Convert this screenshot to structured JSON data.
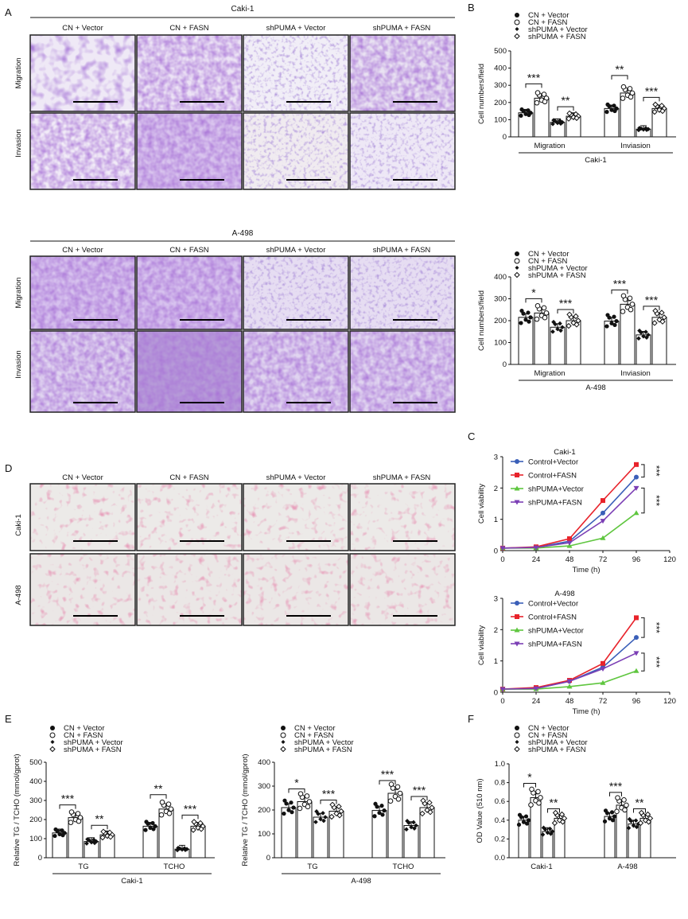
{
  "panel_letters": [
    "A",
    "B",
    "C",
    "D",
    "E",
    "F"
  ],
  "lines": {
    "caki": "Caki-1",
    "a498": "A-498"
  },
  "groups": [
    "CN + Vector",
    "CN + FASN",
    "shPUMA + Vector",
    "shPUMA + FASN"
  ],
  "rows": {
    "migration": "Migration",
    "invasion": "Invasion"
  },
  "viability_groups": [
    "Control+Vector",
    "Control+FASN",
    "shPUMA+Vector",
    "shPUMA+FASN"
  ],
  "colors": {
    "blue": "#3a5fb8",
    "red": "#e8232b",
    "green": "#5fc63f",
    "purple": "#7b3fb5"
  },
  "chart_data": [
    {
      "id": "B_caki",
      "type": "bar",
      "title": "Caki-1",
      "ylabel": "Cell numbers/field",
      "ylim": [
        0,
        500
      ],
      "yticks": [
        0,
        100,
        200,
        300,
        400,
        500
      ],
      "categories": [
        "Migration",
        "Inviasion"
      ],
      "series": [
        {
          "name": "CN + Vector",
          "values": [
            140,
            165
          ]
        },
        {
          "name": "CN + FASN",
          "values": [
            225,
            255
          ]
        },
        {
          "name": "shPUMA + Vector",
          "values": [
            85,
            45
          ]
        },
        {
          "name": "shPUMA + FASN",
          "values": [
            120,
            165
          ]
        }
      ],
      "annotations": [
        "***",
        "**",
        "**",
        "***"
      ]
    },
    {
      "id": "B_a498",
      "type": "bar",
      "title": "A-498",
      "ylabel": "Cell numbers/field",
      "ylim": [
        0,
        400
      ],
      "yticks": [
        0,
        100,
        200,
        300,
        400
      ],
      "categories": [
        "Migration",
        "Inviasion"
      ],
      "series": [
        {
          "name": "CN + Vector",
          "values": [
            215,
            198
          ]
        },
        {
          "name": "CN + FASN",
          "values": [
            235,
            275
          ]
        },
        {
          "name": "shPUMA + Vector",
          "values": [
            170,
            135
          ]
        },
        {
          "name": "shPUMA + FASN",
          "values": [
            200,
            215
          ]
        }
      ],
      "annotations": [
        "*",
        "***",
        "***",
        "***"
      ]
    },
    {
      "id": "C_caki",
      "type": "line",
      "title": "Caki-1",
      "xlabel": "Time (h)",
      "ylabel": "Cell viability",
      "x": [
        0,
        24,
        48,
        72,
        96
      ],
      "xticks": [
        0,
        24,
        48,
        72,
        96,
        120
      ],
      "xlim": [
        0,
        120
      ],
      "ylim": [
        0,
        3
      ],
      "yticks": [
        0,
        1,
        2,
        3
      ],
      "series": [
        {
          "name": "Control+Vector",
          "values": [
            0.08,
            0.1,
            0.3,
            1.2,
            2.35
          ]
        },
        {
          "name": "Control+FASN",
          "values": [
            0.08,
            0.12,
            0.38,
            1.6,
            2.75
          ]
        },
        {
          "name": "shPUMA+Vector",
          "values": [
            0.08,
            0.08,
            0.15,
            0.4,
            1.2
          ]
        },
        {
          "name": "shPUMA+FASN",
          "values": [
            0.08,
            0.1,
            0.25,
            0.95,
            2.0
          ]
        }
      ],
      "annotations": [
        "***",
        "***"
      ]
    },
    {
      "id": "C_a498",
      "type": "line",
      "title": "A-498",
      "xlabel": "Time (h)",
      "ylabel": "Cell viability",
      "x": [
        0,
        24,
        48,
        72,
        96
      ],
      "xticks": [
        0,
        24,
        48,
        72,
        96,
        120
      ],
      "xlim": [
        0,
        120
      ],
      "ylim": [
        0,
        3
      ],
      "yticks": [
        0,
        1,
        2,
        3
      ],
      "series": [
        {
          "name": "Control+Vector",
          "values": [
            0.1,
            0.12,
            0.35,
            0.8,
            1.75
          ]
        },
        {
          "name": "Control+FASN",
          "values": [
            0.1,
            0.15,
            0.38,
            0.92,
            2.38
          ]
        },
        {
          "name": "shPUMA+Vector",
          "values": [
            0.1,
            0.1,
            0.18,
            0.3,
            0.68
          ]
        },
        {
          "name": "shPUMA+FASN",
          "values": [
            0.1,
            0.12,
            0.35,
            0.75,
            1.25
          ]
        }
      ],
      "annotations": [
        "***",
        "***"
      ]
    },
    {
      "id": "E_caki",
      "type": "bar",
      "title": "Caki-1",
      "ylabel": "Relative TG / TCHO (mmol/gprot)",
      "ylim": [
        0,
        500
      ],
      "yticks": [
        0,
        100,
        200,
        300,
        400,
        500
      ],
      "categories": [
        "TG",
        "TCHO"
      ],
      "series": [
        {
          "name": "CN + Vector",
          "values": [
            130,
            165
          ]
        },
        {
          "name": "CN + FASN",
          "values": [
            210,
            255
          ]
        },
        {
          "name": "shPUMA + Vector",
          "values": [
            85,
            45
          ]
        },
        {
          "name": "shPUMA + FASN",
          "values": [
            120,
            165
          ]
        }
      ],
      "annotations": [
        "***",
        "**",
        "**",
        "***"
      ]
    },
    {
      "id": "E_a498",
      "type": "bar",
      "title": "A-498",
      "ylabel": "Relative TG / TCHO (mmol/gprot)",
      "ylim": [
        0,
        400
      ],
      "yticks": [
        0,
        100,
        200,
        300,
        400
      ],
      "categories": [
        "TG",
        "TCHO"
      ],
      "series": [
        {
          "name": "CN + Vector",
          "values": [
            210,
            198
          ]
        },
        {
          "name": "CN + FASN",
          "values": [
            235,
            270
          ]
        },
        {
          "name": "shPUMA + Vector",
          "values": [
            170,
            135
          ]
        },
        {
          "name": "shPUMA + FASN",
          "values": [
            195,
            210
          ]
        }
      ],
      "annotations": [
        "*",
        "***",
        "***",
        "***"
      ]
    },
    {
      "id": "F",
      "type": "bar",
      "ylabel": "OD Value (510 nm)",
      "ylim": [
        0,
        1.0
      ],
      "yticks": [
        0.0,
        0.2,
        0.4,
        0.6,
        0.8,
        1.0
      ],
      "categories": [
        "Caki-1",
        "A-498"
      ],
      "series": [
        {
          "name": "CN + Vector",
          "values": [
            0.4,
            0.44
          ]
        },
        {
          "name": "CN + FASN",
          "values": [
            0.64,
            0.56
          ]
        },
        {
          "name": "shPUMA + Vector",
          "values": [
            0.28,
            0.36
          ]
        },
        {
          "name": "shPUMA + FASN",
          "values": [
            0.42,
            0.42
          ]
        }
      ],
      "annotations": [
        "*",
        "**",
        "***",
        "**"
      ]
    }
  ]
}
